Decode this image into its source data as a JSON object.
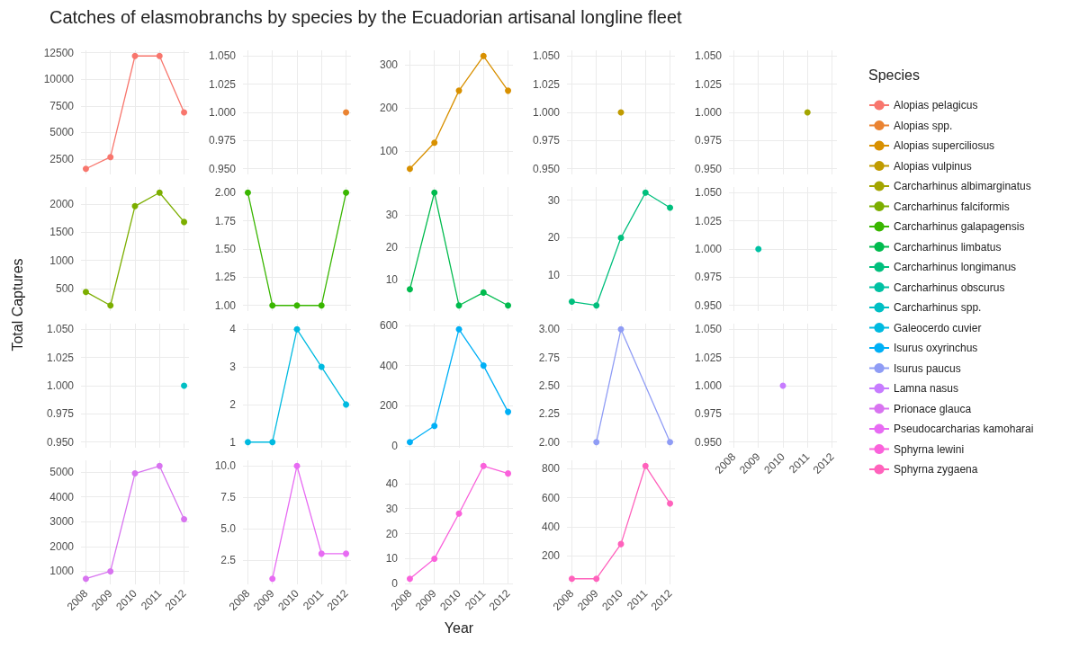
{
  "chart_data": [
    {
      "type": "line",
      "title": "Catches of elasmobranchs by species by the Ecuadorian artisanal longline fleet",
      "ylabel": "Total Captures",
      "legend_title": "Species",
      "legend": "right",
      "x": [
        2008,
        2009,
        2010,
        2011,
        2012
      ],
      "series": [
        {
          "name": "Alopias pelagicus",
          "color": "#f8766d",
          "values": [
            1600,
            2700,
            12200,
            12200,
            6900
          ]
        }
      ],
      "xlim": [
        2007.8,
        2012.2
      ],
      "xticks": [
        2008,
        2009,
        2010,
        2011,
        2012
      ],
      "ylim": [
        1070,
        12730
      ],
      "yticks": [
        2500,
        5000,
        7500,
        10000,
        12500
      ],
      "grid": true,
      "marker": "circle",
      "tick_labels": "y"
    },
    {
      "type": "line",
      "series": [
        {
          "name": "Alopias spp.",
          "color": "#ea8331",
          "x": [
            2012
          ],
          "values": [
            1
          ]
        }
      ],
      "xlim": [
        2007.8,
        2012.2
      ],
      "xticks": [
        2008,
        2009,
        2010,
        2011,
        2012
      ],
      "ylim": [
        0.945,
        1.055
      ],
      "yticks": [
        {
          "value": 0.95,
          "label": "0.950"
        },
        {
          "value": 0.975,
          "label": "0.975"
        },
        {
          "value": 1,
          "label": "1.000"
        },
        {
          "value": 1.025,
          "label": "1.025"
        },
        {
          "value": 1.05,
          "label": "1.050"
        }
      ],
      "grid": true,
      "marker": "circle",
      "tick_labels": "y"
    },
    {
      "type": "line",
      "x": [
        2008,
        2009,
        2010,
        2011,
        2012
      ],
      "series": [
        {
          "name": "Alopias superciliosus",
          "color": "#d89000",
          "values": [
            60,
            120,
            240,
            320,
            240
          ]
        }
      ],
      "xlim": [
        2007.8,
        2012.2
      ],
      "xticks": [
        2008,
        2009,
        2010,
        2011,
        2012
      ],
      "ylim": [
        47,
        333
      ],
      "yticks": [
        100,
        200,
        300
      ],
      "grid": true,
      "marker": "circle",
      "tick_labels": "y"
    },
    {
      "type": "line",
      "series": [
        {
          "name": "Alopias vulpinus",
          "color": "#c09b00",
          "x": [
            2010
          ],
          "values": [
            1
          ]
        }
      ],
      "xlim": [
        2007.8,
        2012.2
      ],
      "xticks": [
        2008,
        2009,
        2010,
        2011,
        2012
      ],
      "ylim": [
        0.945,
        1.055
      ],
      "yticks": [
        {
          "value": 0.95,
          "label": "0.950"
        },
        {
          "value": 0.975,
          "label": "0.975"
        },
        {
          "value": 1,
          "label": "1.000"
        },
        {
          "value": 1.025,
          "label": "1.025"
        },
        {
          "value": 1.05,
          "label": "1.050"
        }
      ],
      "grid": true,
      "marker": "circle",
      "tick_labels": "y"
    },
    {
      "type": "line",
      "series": [
        {
          "name": "Carcharhinus albimarginatus",
          "color": "#a3a500",
          "x": [
            2011
          ],
          "values": [
            1
          ]
        }
      ],
      "xlim": [
        2007.8,
        2012.2
      ],
      "xticks": [
        2008,
        2009,
        2010,
        2011,
        2012
      ],
      "ylim": [
        0.945,
        1.055
      ],
      "yticks": [
        {
          "value": 0.95,
          "label": "0.950"
        },
        {
          "value": 0.975,
          "label": "0.975"
        },
        {
          "value": 1,
          "label": "1.000"
        },
        {
          "value": 1.025,
          "label": "1.025"
        },
        {
          "value": 1.05,
          "label": "1.050"
        }
      ],
      "grid": true,
      "marker": "circle",
      "tick_labels": "y"
    },
    {
      "type": "line",
      "x": [
        2008,
        2009,
        2010,
        2011,
        2012
      ],
      "series": [
        {
          "name": "Carcharhinus falciformis",
          "color": "#7cae00",
          "values": [
            440,
            200,
            1960,
            2200,
            1680
          ]
        }
      ],
      "xlim": [
        2007.8,
        2012.2
      ],
      "xticks": [
        2008,
        2009,
        2010,
        2011,
        2012
      ],
      "ylim": [
        100,
        2300
      ],
      "yticks": [
        500,
        1000,
        1500,
        2000
      ],
      "grid": true,
      "marker": "circle",
      "tick_labels": "y"
    },
    {
      "type": "line",
      "x": [
        2008,
        2009,
        2010,
        2011,
        2012
      ],
      "series": [
        {
          "name": "Carcharhinus galapagensis",
          "color": "#39b600",
          "values": [
            2,
            1,
            1,
            1,
            2
          ]
        }
      ],
      "xlim": [
        2007.8,
        2012.2
      ],
      "xticks": [
        2008,
        2009,
        2010,
        2011,
        2012
      ],
      "ylim": [
        0.95,
        2.05
      ],
      "yticks": [
        {
          "value": 1,
          "label": "1.00"
        },
        1.25,
        {
          "value": 1.5,
          "label": "1.50"
        },
        1.75,
        {
          "value": 2,
          "label": "2.00"
        }
      ],
      "grid": true,
      "marker": "circle",
      "tick_labels": "y"
    },
    {
      "type": "line",
      "x": [
        2008,
        2009,
        2010,
        2011,
        2012
      ],
      "series": [
        {
          "name": "Carcharhinus limbatus",
          "color": "#00bb4e",
          "values": [
            7,
            37,
            2,
            6,
            2
          ]
        }
      ],
      "xlim": [
        2007.8,
        2012.2
      ],
      "xticks": [
        2008,
        2009,
        2010,
        2011,
        2012
      ],
      "ylim": [
        0.25,
        38.75
      ],
      "yticks": [
        10,
        20,
        30
      ],
      "grid": true,
      "marker": "circle",
      "tick_labels": "y"
    },
    {
      "type": "line",
      "x": [
        2008,
        2009,
        2010,
        2011,
        2012
      ],
      "series": [
        {
          "name": "Carcharhinus longimanus",
          "color": "#00bf7d",
          "values": [
            3,
            2,
            20,
            32,
            28
          ]
        }
      ],
      "xlim": [
        2007.8,
        2012.2
      ],
      "xticks": [
        2008,
        2009,
        2010,
        2011,
        2012
      ],
      "ylim": [
        0.5,
        33.5
      ],
      "yticks": [
        10,
        20,
        30
      ],
      "grid": true,
      "marker": "circle",
      "tick_labels": "y"
    },
    {
      "type": "line",
      "series": [
        {
          "name": "Carcharhinus obscurus",
          "color": "#00c1a3",
          "x": [
            2009
          ],
          "values": [
            1
          ]
        }
      ],
      "xlim": [
        2007.8,
        2012.2
      ],
      "xticks": [
        2008,
        2009,
        2010,
        2011,
        2012
      ],
      "ylim": [
        0.945,
        1.055
      ],
      "yticks": [
        {
          "value": 0.95,
          "label": "0.950"
        },
        {
          "value": 0.975,
          "label": "0.975"
        },
        {
          "value": 1,
          "label": "1.000"
        },
        {
          "value": 1.025,
          "label": "1.025"
        },
        {
          "value": 1.05,
          "label": "1.050"
        }
      ],
      "grid": true,
      "marker": "circle",
      "tick_labels": "y"
    },
    {
      "type": "line",
      "series": [
        {
          "name": "Carcharhinus spp.",
          "color": "#00bfc4",
          "x": [
            2012
          ],
          "values": [
            1
          ]
        }
      ],
      "xlim": [
        2007.8,
        2012.2
      ],
      "xticks": [
        2008,
        2009,
        2010,
        2011,
        2012
      ],
      "ylim": [
        0.945,
        1.055
      ],
      "yticks": [
        {
          "value": 0.95,
          "label": "0.950"
        },
        {
          "value": 0.975,
          "label": "0.975"
        },
        {
          "value": 1,
          "label": "1.000"
        },
        {
          "value": 1.025,
          "label": "1.025"
        },
        {
          "value": 1.05,
          "label": "1.050"
        }
      ],
      "grid": true,
      "marker": "circle",
      "tick_labels": "y"
    },
    {
      "type": "line",
      "x": [
        2008,
        2009,
        2010,
        2011,
        2012
      ],
      "series": [
        {
          "name": "Galeocerdo cuvier",
          "color": "#00bae0",
          "values": [
            1,
            1,
            4,
            3,
            2
          ]
        }
      ],
      "xlim": [
        2007.8,
        2012.2
      ],
      "xticks": [
        2008,
        2009,
        2010,
        2011,
        2012
      ],
      "ylim": [
        0.85,
        4.15
      ],
      "yticks": [
        1,
        2,
        3,
        4
      ],
      "grid": true,
      "marker": "circle",
      "tick_labels": "y"
    },
    {
      "type": "line",
      "x": [
        2008,
        2009,
        2010,
        2011,
        2012
      ],
      "series": [
        {
          "name": "Isurus oxyrinchus",
          "color": "#00b0f6",
          "values": [
            20,
            100,
            580,
            400,
            170
          ]
        }
      ],
      "xlim": [
        2007.8,
        2012.2
      ],
      "xticks": [
        2008,
        2009,
        2010,
        2011,
        2012
      ],
      "ylim": [
        -8,
        608
      ],
      "yticks": [
        0,
        200,
        400,
        600
      ],
      "grid": true,
      "marker": "circle",
      "tick_labels": "y"
    },
    {
      "type": "line",
      "series": [
        {
          "name": "Isurus paucus",
          "color": "#8f9cf5",
          "x": [
            2009,
            2010,
            2012
          ],
          "values": [
            2,
            3,
            2
          ]
        }
      ],
      "xlim": [
        2007.8,
        2012.2
      ],
      "xticks": [
        2008,
        2009,
        2010,
        2011,
        2012
      ],
      "ylim": [
        1.95,
        3.05
      ],
      "yticks": [
        {
          "value": 2,
          "label": "2.00"
        },
        2.25,
        {
          "value": 2.5,
          "label": "2.50"
        },
        2.75,
        {
          "value": 3,
          "label": "3.00"
        }
      ],
      "grid": true,
      "marker": "circle",
      "tick_labels": "y"
    },
    {
      "type": "line",
      "series": [
        {
          "name": "Lamna nasus",
          "color": "#c77cff",
          "x": [
            2010
          ],
          "values": [
            1
          ]
        }
      ],
      "xlim": [
        2007.8,
        2012.2
      ],
      "xticks": [
        2008,
        2009,
        2010,
        2011,
        2012
      ],
      "ylim": [
        0.945,
        1.055
      ],
      "yticks": [
        {
          "value": 0.95,
          "label": "0.950"
        },
        {
          "value": 0.975,
          "label": "0.975"
        },
        {
          "value": 1,
          "label": "1.000"
        },
        {
          "value": 1.025,
          "label": "1.025"
        },
        {
          "value": 1.05,
          "label": "1.050"
        }
      ],
      "grid": true,
      "marker": "circle"
    },
    {
      "type": "line",
      "x": [
        2008,
        2009,
        2010,
        2011,
        2012
      ],
      "series": [
        {
          "name": "Prionace glauca",
          "color": "#d874f0",
          "values": [
            700,
            1000,
            4950,
            5250,
            3100
          ]
        }
      ],
      "xlim": [
        2007.8,
        2012.2
      ],
      "xticks": [
        2008,
        2009,
        2010,
        2011,
        2012
      ],
      "ylim": [
        472.5,
        5477.5
      ],
      "yticks": [
        1000,
        2000,
        3000,
        4000,
        5000
      ],
      "grid": true,
      "marker": "circle"
    },
    {
      "type": "line",
      "series": [
        {
          "name": "Pseudocarcharias kamoharai",
          "color": "#e76bf3",
          "x": [
            2009,
            2010,
            2011,
            2012
          ],
          "values": [
            1,
            10,
            3,
            3
          ]
        }
      ],
      "xlim": [
        2007.8,
        2012.2
      ],
      "xticks": [
        2008,
        2009,
        2010,
        2011,
        2012
      ],
      "ylim": [
        0.55,
        10.45
      ],
      "yticks": [
        2.5,
        {
          "value": 5,
          "label": "5.0"
        },
        7.5,
        {
          "value": 10,
          "label": "10.0"
        }
      ],
      "grid": true,
      "marker": "circle"
    },
    {
      "type": "line",
      "xlabel": "Year",
      "x": [
        2008,
        2009,
        2010,
        2011,
        2012
      ],
      "series": [
        {
          "name": "Sphyrna lewini",
          "color": "#fa62db",
          "values": [
            2,
            10,
            28,
            47,
            44
          ]
        }
      ],
      "xlim": [
        2007.8,
        2012.2
      ],
      "xticks": [
        2008,
        2009,
        2010,
        2011,
        2012
      ],
      "ylim": [
        -0.25,
        49.25
      ],
      "yticks": [
        0,
        10,
        20,
        30,
        40
      ],
      "grid": true,
      "marker": "circle"
    },
    {
      "type": "line",
      "x": [
        2008,
        2009,
        2010,
        2011,
        2012
      ],
      "series": [
        {
          "name": "Sphyrna zygaena",
          "color": "#ff62bc",
          "values": [
            40,
            40,
            280,
            820,
            560
          ]
        }
      ],
      "xlim": [
        2007.8,
        2012.2
      ],
      "xticks": [
        2008,
        2009,
        2010,
        2011,
        2012
      ],
      "ylim": [
        1,
        859
      ],
      "yticks": [
        200,
        400,
        600,
        800
      ],
      "grid": true,
      "marker": "circle"
    }
  ]
}
